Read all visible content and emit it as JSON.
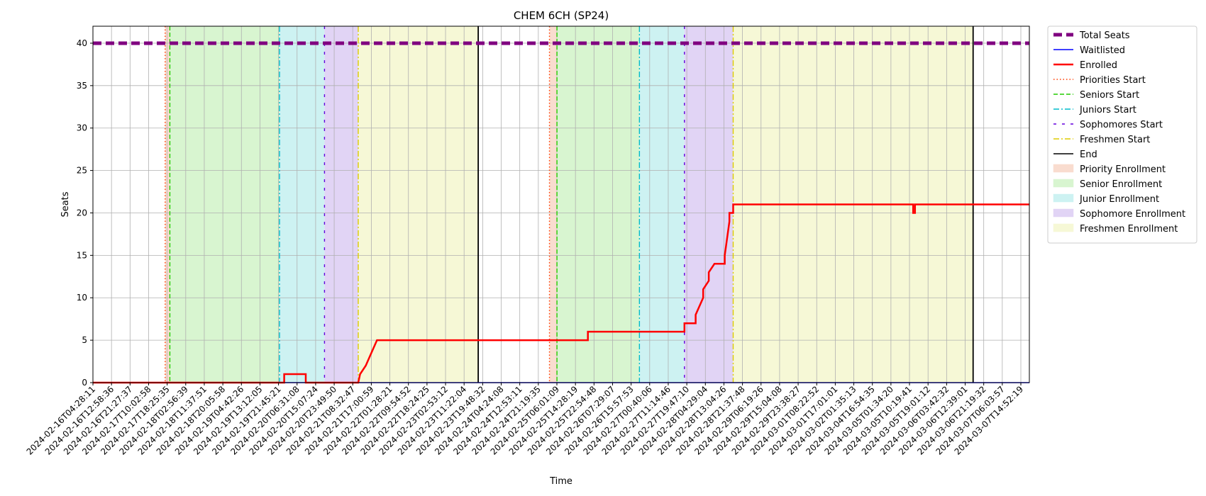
{
  "chart_data": {
    "type": "line",
    "title": "CHEM 6CH (SP24)",
    "xlabel": "Time",
    "ylabel": "Seats",
    "xlim": [
      "2024-02-16T04:28:11",
      "2024-03-08T00:00:00"
    ],
    "ylim": [
      0,
      42
    ],
    "grid": true,
    "legend_position": "outside-right",
    "y_ticks": [
      0,
      5,
      10,
      15,
      20,
      25,
      30,
      35,
      40
    ],
    "x_tick_labels": [
      "2024-02-16T04:28:11",
      "2024-02-16T12:58:36",
      "2024-02-16T21:27:37",
      "2024-02-17T10:02:58",
      "2024-02-17T18:25:35",
      "2024-02-18T02:56:39",
      "2024-02-18T11:37:51",
      "2024-02-18T20:05:58",
      "2024-02-19T04:42:26",
      "2024-02-19T13:12:05",
      "2024-02-19T21:45:21",
      "2024-02-20T06:31:08",
      "2024-02-20T15:07:24",
      "2024-02-20T23:49:50",
      "2024-02-21T08:32:47",
      "2024-02-21T17:00:59",
      "2024-02-22T01:28:21",
      "2024-02-22T09:54:52",
      "2024-02-22T18:24:25",
      "2024-02-23T02:53:12",
      "2024-02-23T11:22:04",
      "2024-02-23T19:48:32",
      "2024-02-24T04:24:08",
      "2024-02-24T12:53:11",
      "2024-02-24T21:19:35",
      "2024-02-25T06:01:09",
      "2024-02-25T14:28:19",
      "2024-02-25T22:54:48",
      "2024-02-26T07:29:07",
      "2024-02-26T15:57:53",
      "2024-02-27T00:40:06",
      "2024-02-27T11:14:46",
      "2024-02-27T19:47:10",
      "2024-02-28T04:29:04",
      "2024-02-28T13:04:26",
      "2024-02-28T21:37:48",
      "2024-02-29T06:19:26",
      "2024-02-29T15:04:08",
      "2024-02-29T23:38:27",
      "2024-03-01T08:22:52",
      "2024-03-01T17:01:01",
      "2024-03-02T01:35:13",
      "2024-03-04T16:54:35",
      "2024-03-05T01:34:20",
      "2024-03-05T10:19:41",
      "2024-03-05T19:01:12",
      "2024-03-06T03:42:32",
      "2024-03-06T12:39:01",
      "2024-03-06T21:19:32",
      "2024-03-07T06:03:57",
      "2024-03-07T14:52:19"
    ],
    "legend": [
      {
        "label": "Total Seats",
        "kind": "line",
        "color": "#800080",
        "dash": "12,6",
        "width": 5
      },
      {
        "label": "Waitlisted",
        "kind": "line",
        "color": "#0000ff",
        "dash": "",
        "width": 1.5
      },
      {
        "label": "Enrolled",
        "kind": "line",
        "color": "#ff0000",
        "dash": "",
        "width": 2.5
      },
      {
        "label": "Priorities Start",
        "kind": "line",
        "color": "#ff3b00",
        "dash": "1.5,3",
        "width": 1.5
      },
      {
        "label": "Seniors Start",
        "kind": "line",
        "color": "#22cc00",
        "dash": "6,3",
        "width": 1.5
      },
      {
        "label": "Juniors Start",
        "kind": "line",
        "color": "#00bbcc",
        "dash": "8,3,2,3",
        "width": 1.5
      },
      {
        "label": "Sophomores Start",
        "kind": "line",
        "color": "#6600dd",
        "dash": "4,8",
        "width": 1.5
      },
      {
        "label": "Freshmen Start",
        "kind": "line",
        "color": "#ddcc00",
        "dash": "8,3,2,3",
        "width": 1.5
      },
      {
        "label": "End",
        "kind": "line",
        "color": "#000000",
        "dash": "",
        "width": 1.5
      },
      {
        "label": "Priority Enrollment",
        "kind": "patch",
        "color": "#f9dccf"
      },
      {
        "label": "Senior Enrollment",
        "kind": "patch",
        "color": "#d8f5d0"
      },
      {
        "label": "Junior Enrollment",
        "kind": "patch",
        "color": "#cdf2f2"
      },
      {
        "label": "Sophomore Enrollment",
        "kind": "patch",
        "color": "#e1d4f5"
      },
      {
        "label": "Freshmen Enrollment",
        "kind": "patch",
        "color": "#f6f8d6"
      }
    ],
    "phases": [
      {
        "phase": "Priority Enrollment",
        "color": "#f9dccf",
        "start": "2024-02-17T19:00:00",
        "end": "2024-02-17T21:30:00"
      },
      {
        "phase": "Senior Enrollment",
        "color": "#d8f5d0",
        "start": "2024-02-17T21:30:00",
        "end": "2024-02-20T08:00:00"
      },
      {
        "phase": "Junior Enrollment",
        "color": "#cdf2f2",
        "start": "2024-02-20T08:00:00",
        "end": "2024-02-21T08:00:00"
      },
      {
        "phase": "Sophomore Enrollment",
        "color": "#e1d4f5",
        "start": "2024-02-21T08:00:00",
        "end": "2024-02-22T02:00:00"
      },
      {
        "phase": "Freshmen Enrollment",
        "color": "#f6f8d6",
        "start": "2024-02-22T02:00:00",
        "end": "2024-02-24T18:00:00"
      },
      {
        "phase": "Priority Enrollment",
        "color": "#f9dccf",
        "start": "2024-02-26T08:00:00",
        "end": "2024-02-26T12:00:00"
      },
      {
        "phase": "Senior Enrollment",
        "color": "#d8f5d0",
        "start": "2024-02-26T12:00:00",
        "end": "2024-02-28T08:00:00"
      },
      {
        "phase": "Junior Enrollment",
        "color": "#cdf2f2",
        "start": "2024-02-28T08:00:00",
        "end": "2024-02-29T08:00:00"
      },
      {
        "phase": "Sophomore Enrollment",
        "color": "#e1d4f5",
        "start": "2024-02-29T08:00:00",
        "end": "2024-03-01T10:00:00"
      },
      {
        "phase": "Freshmen Enrollment",
        "color": "#f6f8d6",
        "start": "2024-03-01T10:00:00",
        "end": "2024-03-06T18:00:00"
      }
    ],
    "markers": [
      {
        "kind": "Priorities Start",
        "time": "2024-02-17T19:00:00",
        "color": "#ff3b00",
        "dash": "1.5,3"
      },
      {
        "kind": "Seniors Start",
        "time": "2024-02-17T21:30:00",
        "color": "#22cc00",
        "dash": "6,3"
      },
      {
        "kind": "Juniors Start",
        "time": "2024-02-20T08:00:00",
        "color": "#00bbcc",
        "dash": "8,3,2,3"
      },
      {
        "kind": "Sophomores Start",
        "time": "2024-02-21T08:00:00",
        "color": "#6600dd",
        "dash": "4,8"
      },
      {
        "kind": "Freshmen Start",
        "time": "2024-02-22T02:00:00",
        "color": "#ddcc00",
        "dash": "8,3,2,3"
      },
      {
        "kind": "End",
        "time": "2024-02-24T18:00:00",
        "color": "#000000",
        "dash": ""
      },
      {
        "kind": "Priorities Start",
        "time": "2024-02-26T08:00:00",
        "color": "#ff3b00",
        "dash": "1.5,3"
      },
      {
        "kind": "Seniors Start",
        "time": "2024-02-26T12:00:00",
        "color": "#22cc00",
        "dash": "6,3"
      },
      {
        "kind": "Juniors Start",
        "time": "2024-02-28T08:00:00",
        "color": "#00bbcc",
        "dash": "8,3,2,3"
      },
      {
        "kind": "Sophomores Start",
        "time": "2024-02-29T08:00:00",
        "color": "#6600dd",
        "dash": "4,8"
      },
      {
        "kind": "Freshmen Start",
        "time": "2024-03-01T10:00:00",
        "color": "#ddcc00",
        "dash": "8,3,2,3"
      },
      {
        "kind": "End",
        "time": "2024-03-06T18:00:00",
        "color": "#000000",
        "dash": ""
      }
    ],
    "series": [
      {
        "name": "Total Seats",
        "color": "#800080",
        "x": [
          "2024-02-16T04:28:11",
          "2024-03-08T00:00:00"
        ],
        "y": [
          40,
          40
        ]
      },
      {
        "name": "Waitlisted",
        "color": "#0000ff",
        "x": [
          "2024-02-16T04:28:11",
          "2024-03-08T00:00:00"
        ],
        "y": [
          0,
          0
        ]
      },
      {
        "name": "Enrolled",
        "color": "#ff0000",
        "x": [
          "2024-02-16T04:28:11",
          "2024-02-20T10:30:00",
          "2024-02-20T10:30:00",
          "2024-02-20T22:00:00",
          "2024-02-20T22:00:00",
          "2024-02-22T02:00:00",
          "2024-02-22T03:00:00",
          "2024-02-22T03:00:00",
          "2024-02-22T06:00:00",
          "2024-02-22T06:00:00",
          "2024-02-22T08:00:00",
          "2024-02-22T08:00:00",
          "2024-02-22T10:00:00",
          "2024-02-22T10:00:00",
          "2024-02-22T12:00:00",
          "2024-02-22T12:00:00",
          "2024-02-27T04:30:00",
          "2024-02-27T04:30:00",
          "2024-02-29T08:00:00",
          "2024-02-29T08:00:00",
          "2024-02-29T14:00:00",
          "2024-02-29T14:00:00",
          "2024-02-29T18:00:00",
          "2024-02-29T18:00:00",
          "2024-02-29T21:00:00",
          "2024-02-29T21:00:00",
          "2024-03-01T00:00:00",
          "2024-03-01T05:30:00",
          "2024-03-01T05:30:00",
          "2024-03-01T08:00:00",
          "2024-03-01T08:00:00",
          "2024-03-01T10:00:00",
          "2024-03-01T10:00:00",
          "2024-03-05T10:00:00",
          "2024-03-05T10:00:00",
          "2024-03-05T11:00:00",
          "2024-03-05T11:00:00",
          "2024-03-08T00:00:00"
        ],
        "y": [
          0,
          0,
          1,
          1,
          0,
          0,
          1,
          1,
          2,
          2,
          3,
          3,
          4,
          4,
          5,
          5,
          5,
          6,
          6,
          7,
          7,
          8,
          10,
          11,
          12,
          13,
          14,
          14,
          15,
          19,
          20,
          20,
          21,
          21,
          20,
          20,
          21,
          21
        ]
      }
    ]
  }
}
